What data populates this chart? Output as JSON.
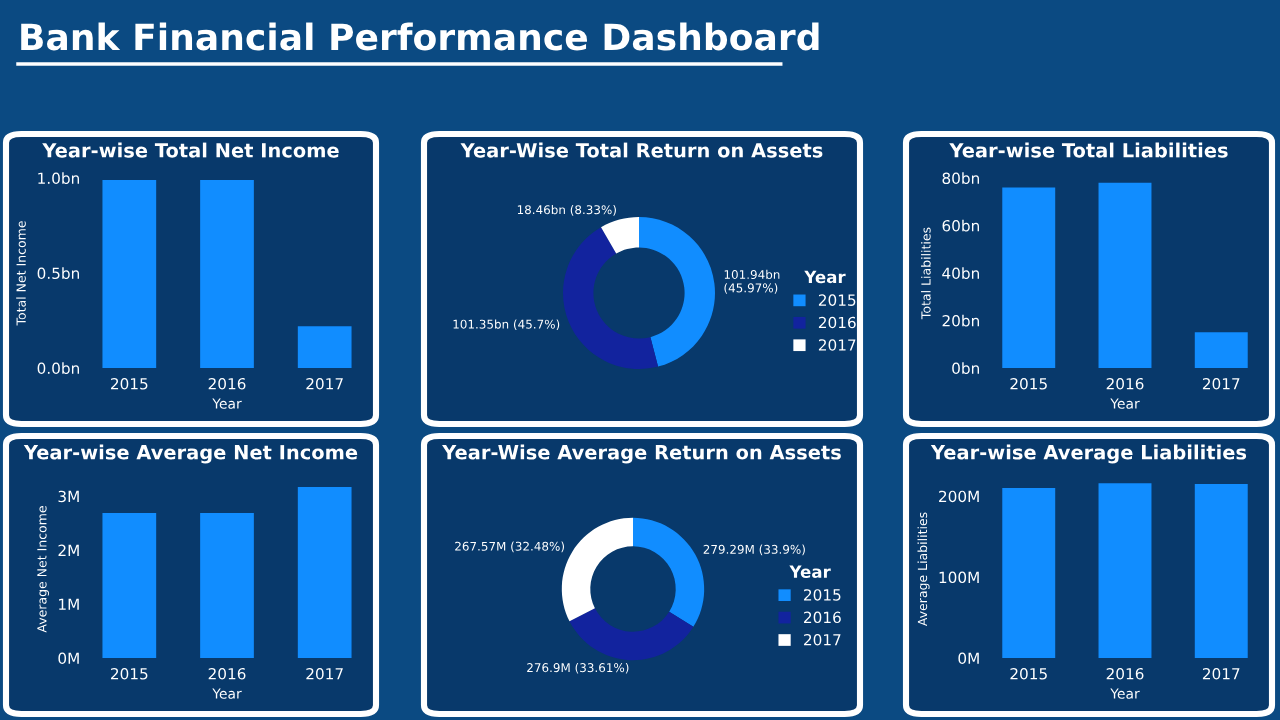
{
  "chart_data": [
    {
      "type": "other",
      "title": "Bank Financial Performance Dashboard"
    },
    {
      "type": "bar",
      "title": "Year-wise Total Net Income",
      "xlabel": "Year",
      "ylabel": "Total Net Income",
      "categories": [
        "2015",
        "2016",
        "2017"
      ],
      "values": [
        0.99,
        0.99,
        0.22
      ],
      "color": "#118dff",
      "ylim": [
        0,
        1.0
      ],
      "yticks": [
        {
          "value": 0,
          "label": "0.0bn"
        },
        {
          "value": 0.5,
          "label": "0.5bn"
        },
        {
          "value": 1.0,
          "label": "1.0bn"
        }
      ],
      "grid": false
    },
    {
      "type": "donut",
      "title": "Year-Wise Total Return on Assets",
      "legend_title": "Year",
      "categories": [
        "2015",
        "2016",
        "2017"
      ],
      "values": [
        45.97,
        45.7,
        8.33
      ],
      "colors": [
        "#118dff",
        "#12239e",
        "#ffffff"
      ],
      "value_labels": [
        "101.94bn\n(45.97%)",
        "101.35bn (45.7%)",
        "18.46bn (8.33%)"
      ],
      "legend": "right"
    },
    {
      "type": "bar",
      "title": "Year-wise Total Liabilities",
      "xlabel": "Year",
      "ylabel": "Total Liabilities",
      "categories": [
        "2015",
        "2016",
        "2017"
      ],
      "values": [
        76,
        78,
        15
      ],
      "color": "#118dff",
      "ylim": [
        0,
        80
      ],
      "yticks": [
        {
          "value": 0,
          "label": "0bn"
        },
        {
          "value": 20,
          "label": "20bn"
        },
        {
          "value": 40,
          "label": "40bn"
        },
        {
          "value": 60,
          "label": "60bn"
        },
        {
          "value": 80,
          "label": "80bn"
        }
      ],
      "grid": false
    },
    {
      "type": "bar",
      "title": "Year-wise Average Net Income",
      "xlabel": "Year",
      "ylabel": "Average Net Income",
      "categories": [
        "2015",
        "2016",
        "2017"
      ],
      "values": [
        2.69,
        2.69,
        3.17
      ],
      "color": "#118dff",
      "ylim": [
        0,
        3.3
      ],
      "yticks": [
        {
          "value": 0,
          "label": "0M"
        },
        {
          "value": 1,
          "label": "1M"
        },
        {
          "value": 2,
          "label": "2M"
        },
        {
          "value": 3,
          "label": "3M"
        }
      ],
      "grid": false
    },
    {
      "type": "donut",
      "title": "Year-Wise Average Return on Assets",
      "legend_title": "Year",
      "categories": [
        "2015",
        "2016",
        "2017"
      ],
      "values": [
        33.9,
        33.61,
        32.48
      ],
      "colors": [
        "#118dff",
        "#12239e",
        "#ffffff"
      ],
      "value_labels": [
        "279.29M (33.9%)",
        "276.9M (33.61%)",
        "267.57M (32.48%)"
      ],
      "legend": "right"
    },
    {
      "type": "bar",
      "title": "Year-wise Average Liabilities",
      "xlabel": "Year",
      "ylabel": "Average Liabilities",
      "categories": [
        "2015",
        "2016",
        "2017"
      ],
      "values": [
        210,
        216,
        215
      ],
      "color": "#118dff",
      "ylim": [
        0,
        220
      ],
      "yticks": [
        {
          "value": 0,
          "label": "0M"
        },
        {
          "value": 100,
          "label": "100M"
        },
        {
          "value": 200,
          "label": "200M"
        }
      ],
      "grid": false
    }
  ]
}
